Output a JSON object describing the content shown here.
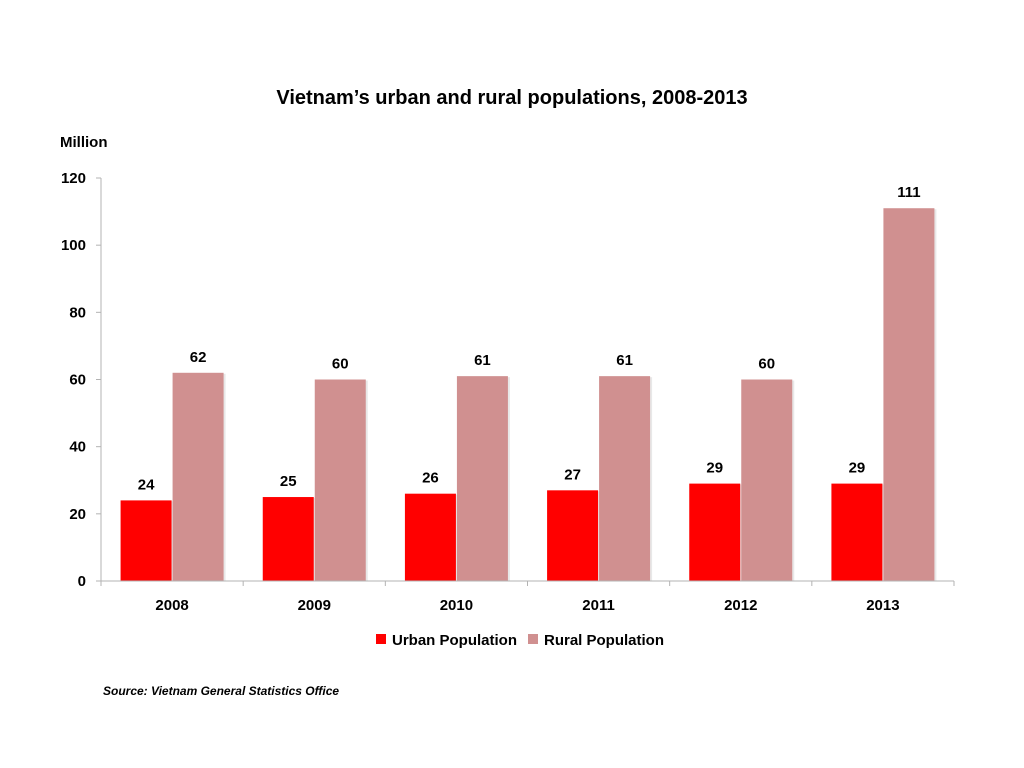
{
  "chart_data": {
    "type": "bar",
    "title": "Vietnam’s urban and rural populations, 2008-2013",
    "ylabel": "Million",
    "xlabel": "",
    "categories": [
      "2008",
      "2009",
      "2010",
      "2011",
      "2012",
      "2013"
    ],
    "series": [
      {
        "name": "Urban Population",
        "color": "#ff0000",
        "values": [
          24,
          25,
          26,
          27,
          29,
          29
        ]
      },
      {
        "name": "Rural Population",
        "color": "#d09090",
        "values": [
          62,
          60,
          61,
          61,
          60,
          111
        ]
      }
    ],
    "ylim": [
      0,
      120
    ],
    "yticks": [
      0,
      20,
      40,
      60,
      80,
      100,
      120
    ],
    "ytick_labels": [
      "0",
      "20",
      "40",
      "60",
      "80",
      "100",
      "120"
    ],
    "data_labels": [
      [
        "24",
        "25",
        "26",
        "27",
        "29",
        "29"
      ],
      [
        "62",
        "60",
        "61",
        "61",
        "60",
        "111"
      ]
    ],
    "grid": false,
    "legend_position": "bottom"
  },
  "source": "Source: Vietnam General Statistics Office"
}
